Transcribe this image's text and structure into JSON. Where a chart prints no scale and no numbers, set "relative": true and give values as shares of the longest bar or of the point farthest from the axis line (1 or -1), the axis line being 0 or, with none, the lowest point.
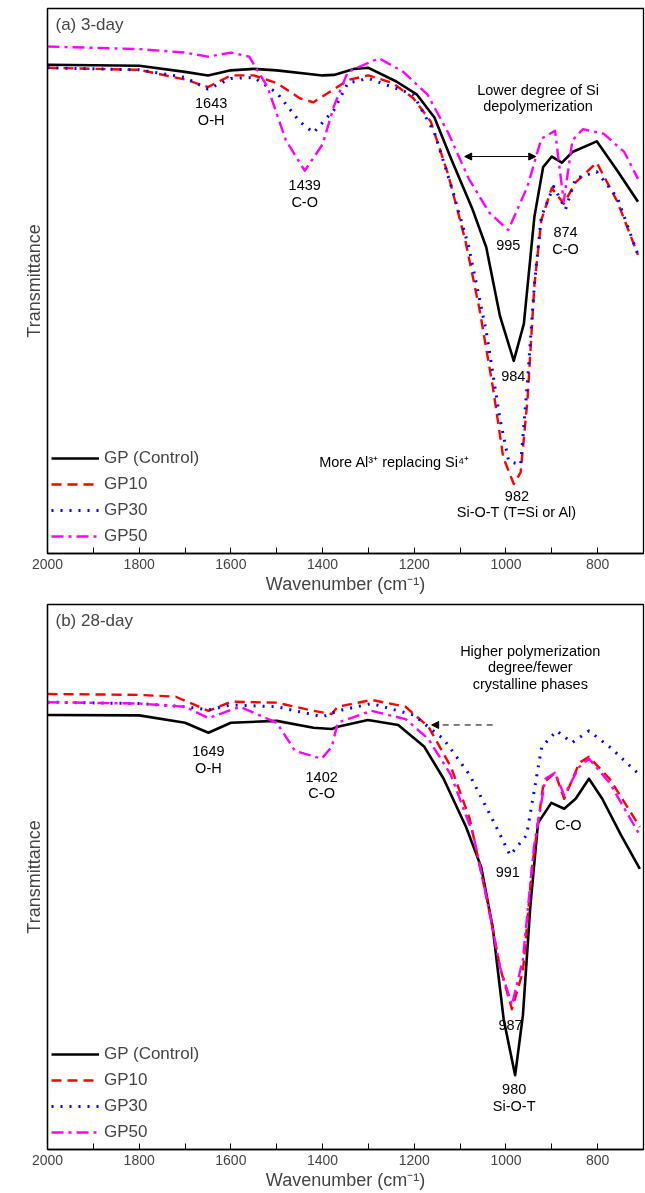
{
  "chart_data": [
    {
      "type": "line",
      "title": "(a) 3-day",
      "xlabel": "Wavenumber (cm⁻¹)",
      "ylabel": "Transmittance",
      "relative": true,
      "legend": "bottom left",
      "tick_labels": "x",
      "xlim": [
        2000,
        700
      ],
      "xticks": [
        2000,
        {
          "value": 1900,
          "label": null
        },
        1800,
        {
          "value": 1700,
          "label": null
        },
        1600,
        {
          "value": 1500,
          "label": null
        },
        1400,
        {
          "value": 1300,
          "label": null
        },
        1200,
        {
          "value": 1100,
          "label": null
        },
        1000,
        {
          "value": 900,
          "label": null
        },
        800
      ],
      "series": [
        {
          "name": "GP (Control)",
          "color": "#000000",
          "line_style": "solid",
          "x": [
            2000,
            1800,
            1700,
            1650,
            1600,
            1550,
            1500,
            1400,
            1375,
            1330,
            1300,
            1239,
            1194,
            1156,
            1119,
            1073,
            1043,
            1013,
            983,
            961,
            938,
            919,
            900,
            878,
            855,
            802,
            757,
            712
          ],
          "values": [
            0.964,
            0.962,
            0.95,
            0.943,
            0.953,
            0.956,
            0.953,
            0.943,
            0.944,
            0.956,
            0.958,
            0.931,
            0.905,
            0.86,
            0.777,
            0.679,
            0.604,
            0.468,
            0.38,
            0.453,
            0.664,
            0.762,
            0.783,
            0.771,
            0.792,
            0.813,
            0.755,
            0.694
          ]
        },
        {
          "name": "GP10",
          "color": "#ff0000",
          "line_style": "dashed",
          "x": [
            2000,
            1800,
            1700,
            1650,
            1600,
            1550,
            1500,
            1450,
            1420,
            1375,
            1345,
            1300,
            1247,
            1202,
            1164,
            1126,
            1089,
            1058,
            1028,
            1006,
            983,
            968,
            953,
            938,
            923,
            900,
            874,
            848,
            802,
            757,
            712
          ],
          "values": [
            0.958,
            0.954,
            0.935,
            0.92,
            0.943,
            0.943,
            0.928,
            0.898,
            0.89,
            0.916,
            0.934,
            0.943,
            0.928,
            0.898,
            0.852,
            0.747,
            0.619,
            0.483,
            0.325,
            0.19,
            0.137,
            0.16,
            0.303,
            0.529,
            0.657,
            0.721,
            0.69,
            0.732,
            0.771,
            0.694,
            0.589
          ]
        },
        {
          "name": "GP30",
          "color": "#0000ff",
          "line_style": "dotted",
          "x": [
            2000,
            1800,
            1700,
            1650,
            1600,
            1550,
            1500,
            1450,
            1420,
            1375,
            1345,
            1300,
            1247,
            1202,
            1156,
            1119,
            1081,
            1043,
            1013,
            994,
            968,
            953,
            938,
            923,
            896,
            870,
            848,
            802,
            757,
            712
          ],
          "values": [
            0.958,
            0.954,
            0.939,
            0.916,
            0.937,
            0.939,
            0.909,
            0.852,
            0.83,
            0.875,
            0.928,
            0.937,
            0.92,
            0.905,
            0.83,
            0.724,
            0.604,
            0.438,
            0.265,
            0.182,
            0.175,
            0.34,
            0.529,
            0.664,
            0.724,
            0.679,
            0.74,
            0.753,
            0.702,
            0.589
          ]
        },
        {
          "name": "GP50",
          "color": "#ff00ff",
          "line_style": "dashdot",
          "x": [
            2000,
            1800,
            1700,
            1650,
            1600,
            1560,
            1520,
            1480,
            1439,
            1400,
            1375,
            1345,
            1277,
            1224,
            1171,
            1126,
            1081,
            1036,
            995,
            953,
            923,
            893,
            874,
            855,
            832,
            787,
            742,
            712
          ],
          "values": [
            1.0,
            0.995,
            0.988,
            0.98,
            0.988,
            0.98,
            0.92,
            0.815,
            0.755,
            0.807,
            0.883,
            0.95,
            0.977,
            0.95,
            0.905,
            0.83,
            0.739,
            0.672,
            0.638,
            0.724,
            0.818,
            0.834,
            0.694,
            0.815,
            0.837,
            0.828,
            0.792,
            0.739
          ]
        }
      ],
      "annotations": [
        "1643\nO-H",
        "1439\nC-O",
        "Lower degree of Si\ndepolymerization",
        "995",
        "874\nC-O",
        "984",
        "More Al³⁺ replacing Si⁴⁺",
        "982\nSi-O-T (T=Si or Al)"
      ]
    },
    {
      "type": "line",
      "title": "(b) 28-day",
      "xlabel": "Wavenumber (cm⁻¹)",
      "ylabel": "Transmittance",
      "relative": true,
      "legend": "bottom left",
      "tick_labels": "x",
      "xlim": [
        2000,
        700
      ],
      "xticks": [
        2000,
        {
          "value": 1900,
          "label": null
        },
        1800,
        {
          "value": 1700,
          "label": null
        },
        1600,
        {
          "value": 1500,
          "label": null
        },
        1400,
        {
          "value": 1300,
          "label": null
        },
        1200,
        {
          "value": 1100,
          "label": null
        },
        1000,
        {
          "value": 900,
          "label": null
        },
        800
      ],
      "series": [
        {
          "name": "GP (Control)",
          "color": "#000000",
          "line_style": "solid",
          "x": [
            2000,
            1800,
            1700,
            1649,
            1600,
            1500,
            1420,
            1380,
            1367,
            1301,
            1235,
            1178,
            1136,
            1087,
            1054,
            1029,
            1005,
            980,
            963,
            947,
            930,
            901,
            873,
            848,
            819,
            790,
            749,
            708
          ],
          "values": [
            0.954,
            0.953,
            0.937,
            0.915,
            0.937,
            0.941,
            0.926,
            0.923,
            0.928,
            0.943,
            0.932,
            0.884,
            0.814,
            0.708,
            0.62,
            0.488,
            0.286,
            0.163,
            0.295,
            0.532,
            0.717,
            0.761,
            0.748,
            0.77,
            0.814,
            0.77,
            0.69,
            0.616
          ]
        },
        {
          "name": "GP10",
          "color": "#ff0000",
          "line_style": "dashed",
          "x": [
            2000,
            1800,
            1720,
            1649,
            1600,
            1500,
            1420,
            1380,
            1367,
            1293,
            1219,
            1169,
            1120,
            1079,
            1038,
            1013,
            987,
            963,
            943,
            918,
            893,
            873,
            840,
            819,
            774,
            708
          ],
          "values": [
            1.0,
            0.998,
            0.994,
            0.963,
            0.983,
            0.981,
            0.963,
            0.956,
            0.972,
            0.987,
            0.972,
            0.928,
            0.84,
            0.726,
            0.532,
            0.4,
            0.308,
            0.391,
            0.62,
            0.805,
            0.827,
            0.77,
            0.849,
            0.862,
            0.814,
            0.708
          ]
        },
        {
          "name": "GP30",
          "color": "#0000ff",
          "line_style": "dotted",
          "x": [
            2000,
            1800,
            1700,
            1649,
            1600,
            1500,
            1400,
            1367,
            1293,
            1202,
            1136,
            1079,
            1021,
            991,
            955,
            922,
            889,
            856,
            819,
            774,
            708
          ],
          "values": [
            0.982,
            0.979,
            0.972,
            0.965,
            0.976,
            0.972,
            0.95,
            0.963,
            0.979,
            0.954,
            0.901,
            0.822,
            0.708,
            0.646,
            0.69,
            0.884,
            0.919,
            0.893,
            0.919,
            0.884,
            0.822
          ]
        },
        {
          "name": "GP50",
          "color": "#ff00ff",
          "line_style": "dashdot",
          "x": [
            2000,
            1800,
            1700,
            1649,
            1580,
            1500,
            1460,
            1402,
            1380,
            1367,
            1293,
            1219,
            1169,
            1120,
            1071,
            1038,
            1013,
            987,
            963,
            939,
            914,
            893,
            873,
            840,
            819,
            774,
            708
          ],
          "values": [
            0.982,
            0.979,
            0.972,
            0.947,
            0.972,
            0.937,
            0.875,
            0.858,
            0.884,
            0.937,
            0.963,
            0.945,
            0.901,
            0.822,
            0.69,
            0.532,
            0.4,
            0.317,
            0.418,
            0.664,
            0.814,
            0.827,
            0.778,
            0.84,
            0.858,
            0.805,
            0.69
          ]
        }
      ],
      "annotations": [
        "1649\nO-H",
        "1402\nC-O",
        "Higher polymerization\ndegree/fewer\ncrystalline phases",
        "C-O",
        "991",
        "987",
        "980\nSi-O-T"
      ]
    }
  ]
}
